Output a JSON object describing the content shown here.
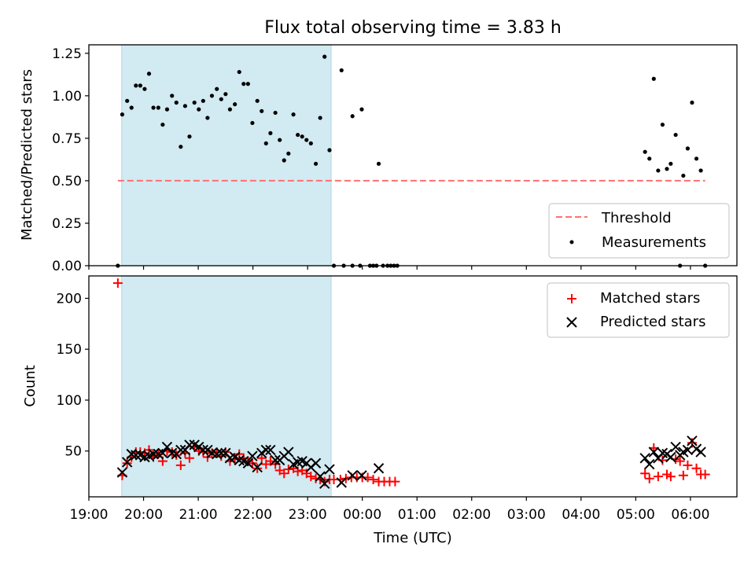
{
  "title": "Flux total observing time = 3.83 h",
  "colors": {
    "shade": "#add8e6",
    "threshold": "#ff7070",
    "measurement": "#000000",
    "matched": "#ff0000",
    "predicted": "#000000"
  },
  "chart_data": [
    {
      "type": "scatter",
      "name": "ratio-panel",
      "ylabel": "Matched/Predicted stars",
      "ylim": [
        0,
        1.3
      ],
      "yticks": [
        0,
        0.25,
        0.5,
        0.75,
        1.0,
        1.25
      ],
      "ytick_labels": [
        "0.00",
        "0.25",
        "0.50",
        "0.75",
        "1.00",
        "1.25"
      ],
      "xlim": [
        19.0,
        30.85
      ],
      "shaded_span": [
        19.6,
        23.43
      ],
      "threshold": {
        "label": "Threshold",
        "value": 0.5,
        "x_range": [
          19.53,
          30.27
        ]
      },
      "legend": [
        "Threshold",
        "Measurements"
      ],
      "legend_position": "lower-right",
      "measurements": [
        [
          19.53,
          0.0
        ],
        [
          19.61,
          0.89
        ],
        [
          19.7,
          0.97
        ],
        [
          19.78,
          0.93
        ],
        [
          19.86,
          1.06
        ],
        [
          19.94,
          1.06
        ],
        [
          20.02,
          1.04
        ],
        [
          20.1,
          1.13
        ],
        [
          20.18,
          0.93
        ],
        [
          20.27,
          0.93
        ],
        [
          20.35,
          0.83
        ],
        [
          20.43,
          0.92
        ],
        [
          20.52,
          1.0
        ],
        [
          20.6,
          0.96
        ],
        [
          20.68,
          0.7
        ],
        [
          20.76,
          0.94
        ],
        [
          20.84,
          0.76
        ],
        [
          20.93,
          0.96
        ],
        [
          21.01,
          0.92
        ],
        [
          21.09,
          0.97
        ],
        [
          21.17,
          0.87
        ],
        [
          21.25,
          1.0
        ],
        [
          21.34,
          1.04
        ],
        [
          21.42,
          0.98
        ],
        [
          21.5,
          1.01
        ],
        [
          21.58,
          0.92
        ],
        [
          21.67,
          0.95
        ],
        [
          21.75,
          1.14
        ],
        [
          21.83,
          1.07
        ],
        [
          21.91,
          1.07
        ],
        [
          21.99,
          0.84
        ],
        [
          22.08,
          0.97
        ],
        [
          22.16,
          0.91
        ],
        [
          22.24,
          0.72
        ],
        [
          22.32,
          0.78
        ],
        [
          22.41,
          0.9
        ],
        [
          22.49,
          0.74
        ],
        [
          22.57,
          0.62
        ],
        [
          22.65,
          0.66
        ],
        [
          22.74,
          0.89
        ],
        [
          22.82,
          0.77
        ],
        [
          22.9,
          0.76
        ],
        [
          22.98,
          0.74
        ],
        [
          23.06,
          0.72
        ],
        [
          23.15,
          0.6
        ],
        [
          23.23,
          0.87
        ],
        [
          23.31,
          1.23
        ],
        [
          23.4,
          0.68
        ],
        [
          23.48,
          0.0
        ],
        [
          23.62,
          1.15
        ],
        [
          23.66,
          0.0
        ],
        [
          23.82,
          0.88
        ],
        [
          23.82,
          0.0
        ],
        [
          23.96,
          0.0
        ],
        [
          23.99,
          0.92
        ],
        [
          24.14,
          0.0
        ],
        [
          24.2,
          0.0
        ],
        [
          24.26,
          0.0
        ],
        [
          24.3,
          0.6
        ],
        [
          24.38,
          0.0
        ],
        [
          24.46,
          0.0
        ],
        [
          24.52,
          0.0
        ],
        [
          24.58,
          0.0
        ],
        [
          24.64,
          0.0
        ],
        [
          29.17,
          0.67
        ],
        [
          29.25,
          0.63
        ],
        [
          29.33,
          1.1
        ],
        [
          29.41,
          0.56
        ],
        [
          29.49,
          0.83
        ],
        [
          29.57,
          0.57
        ],
        [
          29.64,
          0.6
        ],
        [
          29.73,
          0.77
        ],
        [
          29.81,
          0.0
        ],
        [
          29.87,
          0.53
        ],
        [
          29.95,
          0.69
        ],
        [
          30.03,
          0.96
        ],
        [
          30.11,
          0.63
        ],
        [
          30.19,
          0.56
        ],
        [
          30.27,
          0.0
        ]
      ]
    },
    {
      "type": "scatter",
      "name": "count-panel",
      "ylabel": "Count",
      "xlabel": "Time (UTC)",
      "ylim": [
        5,
        222
      ],
      "yticks": [
        50,
        100,
        150,
        200
      ],
      "ytick_labels": [
        "50",
        "100",
        "150",
        "200"
      ],
      "xlim": [
        19.0,
        30.85
      ],
      "xticks": [
        19,
        20,
        21,
        22,
        23,
        24,
        25,
        26,
        27,
        28,
        29,
        30
      ],
      "xtick_labels": [
        "19:00",
        "20:00",
        "21:00",
        "22:00",
        "23:00",
        "00:00",
        "01:00",
        "02:00",
        "03:00",
        "04:00",
        "05:00",
        "06:00"
      ],
      "shaded_span": [
        19.6,
        23.43
      ],
      "legend": [
        "Matched stars",
        "Predicted stars"
      ],
      "legend_position": "upper-right",
      "matched": [
        [
          19.53,
          215
        ],
        [
          19.61,
          26
        ],
        [
          19.7,
          38
        ],
        [
          19.78,
          44
        ],
        [
          19.86,
          49
        ],
        [
          19.94,
          49
        ],
        [
          20.02,
          48
        ],
        [
          20.1,
          51
        ],
        [
          20.18,
          44
        ],
        [
          20.27,
          47
        ],
        [
          20.35,
          40
        ],
        [
          20.43,
          50
        ],
        [
          20.52,
          49
        ],
        [
          20.6,
          46
        ],
        [
          20.68,
          36
        ],
        [
          20.76,
          48
        ],
        [
          20.84,
          43
        ],
        [
          20.93,
          54
        ],
        [
          21.01,
          50
        ],
        [
          21.09,
          49
        ],
        [
          21.17,
          44
        ],
        [
          21.25,
          48
        ],
        [
          21.34,
          49
        ],
        [
          21.42,
          45
        ],
        [
          21.5,
          49
        ],
        [
          21.58,
          40
        ],
        [
          21.67,
          42
        ],
        [
          21.75,
          47
        ],
        [
          21.83,
          43
        ],
        [
          21.91,
          40
        ],
        [
          21.99,
          38
        ],
        [
          22.08,
          33
        ],
        [
          22.16,
          43
        ],
        [
          22.24,
          37
        ],
        [
          22.32,
          40
        ],
        [
          22.41,
          37
        ],
        [
          22.49,
          31
        ],
        [
          22.57,
          28
        ],
        [
          22.65,
          32
        ],
        [
          22.74,
          33
        ],
        [
          22.82,
          30
        ],
        [
          22.9,
          31
        ],
        [
          22.98,
          28
        ],
        [
          23.06,
          25
        ],
        [
          23.15,
          23
        ],
        [
          23.23,
          22
        ],
        [
          23.31,
          20
        ],
        [
          23.4,
          22
        ],
        [
          23.48,
          22
        ],
        [
          23.6,
          22
        ],
        [
          23.7,
          23
        ],
        [
          23.8,
          24
        ],
        [
          23.9,
          24
        ],
        [
          24.0,
          24
        ],
        [
          24.1,
          24
        ],
        [
          24.2,
          22
        ],
        [
          24.3,
          20
        ],
        [
          24.4,
          20
        ],
        [
          24.5,
          20
        ],
        [
          24.6,
          20
        ],
        [
          29.17,
          28
        ],
        [
          29.25,
          23
        ],
        [
          29.33,
          53
        ],
        [
          29.41,
          25
        ],
        [
          29.49,
          41
        ],
        [
          29.57,
          27
        ],
        [
          29.64,
          25
        ],
        [
          29.73,
          42
        ],
        [
          29.81,
          40
        ],
        [
          29.87,
          26
        ],
        [
          29.95,
          36
        ],
        [
          30.03,
          58
        ],
        [
          30.11,
          33
        ],
        [
          30.19,
          27
        ],
        [
          30.27,
          27
        ]
      ],
      "predicted": [
        [
          19.61,
          29
        ],
        [
          19.7,
          39
        ],
        [
          19.78,
          47
        ],
        [
          19.86,
          46
        ],
        [
          19.94,
          46
        ],
        [
          20.02,
          44
        ],
        [
          20.1,
          45
        ],
        [
          20.18,
          47
        ],
        [
          20.27,
          47
        ],
        [
          20.35,
          48
        ],
        [
          20.43,
          54
        ],
        [
          20.52,
          48
        ],
        [
          20.6,
          47
        ],
        [
          20.68,
          51
        ],
        [
          20.76,
          51
        ],
        [
          20.84,
          56
        ],
        [
          20.93,
          56
        ],
        [
          21.01,
          54
        ],
        [
          21.09,
          51
        ],
        [
          21.17,
          51
        ],
        [
          21.25,
          48
        ],
        [
          21.34,
          47
        ],
        [
          21.42,
          48
        ],
        [
          21.5,
          48
        ],
        [
          21.58,
          43
        ],
        [
          21.67,
          44
        ],
        [
          21.75,
          41
        ],
        [
          21.83,
          40
        ],
        [
          21.91,
          38
        ],
        [
          21.99,
          45
        ],
        [
          22.08,
          34
        ],
        [
          22.16,
          48
        ],
        [
          22.24,
          51
        ],
        [
          22.32,
          51
        ],
        [
          22.41,
          41
        ],
        [
          22.49,
          41
        ],
        [
          22.57,
          45
        ],
        [
          22.65,
          49
        ],
        [
          22.74,
          37
        ],
        [
          22.82,
          39
        ],
        [
          22.9,
          40
        ],
        [
          22.98,
          38
        ],
        [
          23.06,
          34
        ],
        [
          23.15,
          38
        ],
        [
          23.23,
          25
        ],
        [
          23.31,
          18
        ],
        [
          23.4,
          32
        ],
        [
          23.62,
          19
        ],
        [
          23.82,
          26
        ],
        [
          23.99,
          26
        ],
        [
          24.3,
          33
        ],
        [
          29.17,
          43
        ],
        [
          29.25,
          37
        ],
        [
          29.33,
          49
        ],
        [
          29.41,
          43
        ],
        [
          29.49,
          48
        ],
        [
          29.57,
          47
        ],
        [
          29.64,
          44
        ],
        [
          29.73,
          54
        ],
        [
          29.81,
          46
        ],
        [
          29.87,
          49
        ],
        [
          29.95,
          51
        ],
        [
          30.03,
          60
        ],
        [
          30.11,
          52
        ],
        [
          30.19,
          49
        ]
      ]
    }
  ]
}
